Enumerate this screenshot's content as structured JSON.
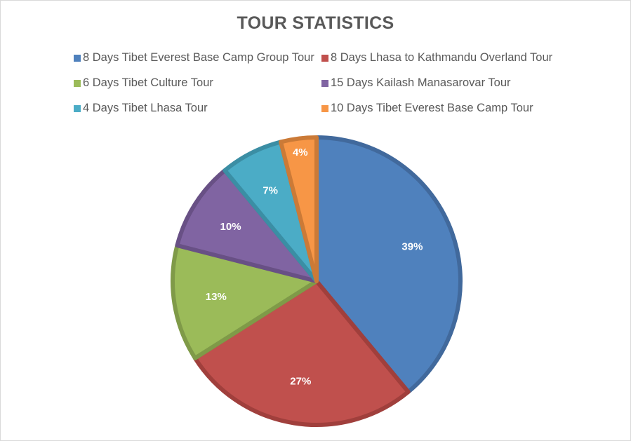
{
  "chart_data": {
    "type": "pie",
    "title": "TOUR STATISTICS",
    "legend_position": "top",
    "categories": [
      "8 Days Tibet Everest Base Camp Group Tour",
      "8 Days Lhasa to Kathmandu Overland Tour",
      "6 Days Tibet Culture Tour",
      "15 Days Kailash Manasarovar Tour",
      "4 Days Tibet Lhasa Tour",
      "10 Days Tibet Everest Base Camp Tour"
    ],
    "values": [
      39,
      27,
      13,
      10,
      7,
      4
    ],
    "data_labels": [
      "39%",
      "27%",
      "13%",
      "10%",
      "7%",
      "4%"
    ],
    "colors": [
      "#4f81bd",
      "#c0504d",
      "#9bbb59",
      "#8064a2",
      "#4bacc6",
      "#f79646"
    ],
    "border_colors": [
      "#41699c",
      "#a03f3c",
      "#7f9a48",
      "#685085",
      "#3b8ea4",
      "#cb7a37"
    ]
  }
}
